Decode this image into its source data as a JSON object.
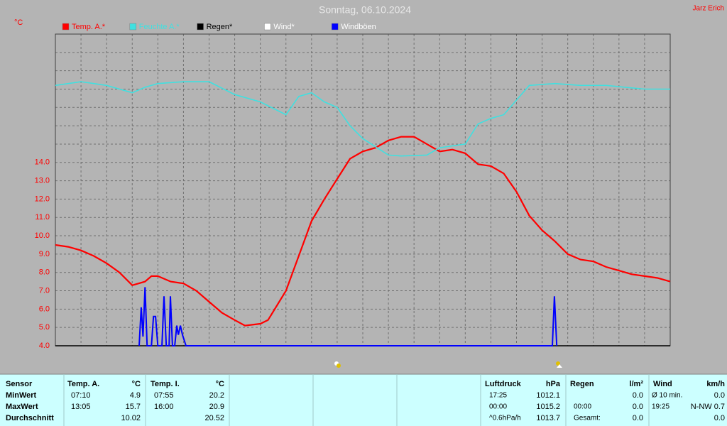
{
  "chart_data": {
    "type": "line",
    "title": "Sonntag, 06.10.2024",
    "y_unit": "°C",
    "author": "Jarz Erich",
    "xlim": [
      0,
      24
    ],
    "xticks": [
      0,
      1,
      2,
      3,
      4,
      5,
      6,
      7,
      8,
      9,
      10,
      11,
      12,
      13,
      14,
      15,
      16,
      17,
      18,
      19,
      20,
      21,
      22,
      23,
      24
    ],
    "ylim": [
      4,
      21
    ],
    "yticks": [
      {
        "value": 4,
        "label": "4.0"
      },
      {
        "value": 5,
        "label": "5.0"
      },
      {
        "value": 6,
        "label": "6.0"
      },
      {
        "value": 7,
        "label": "7.0"
      },
      {
        "value": 8,
        "label": "8.0"
      },
      {
        "value": 9,
        "label": "9.0"
      },
      {
        "value": 10,
        "label": "10.0"
      },
      {
        "value": 11,
        "label": "11.0"
      },
      {
        "value": 12,
        "label": "12.0"
      },
      {
        "value": 13,
        "label": "13.0"
      },
      {
        "value": 14,
        "label": "14.0"
      }
    ],
    "grid_y": [
      15,
      16,
      17,
      18,
      19,
      20,
      21
    ],
    "grid": true,
    "series": [
      {
        "name": "Temp. A.*",
        "color": "#ff0000",
        "x": [
          0,
          0.5,
          1,
          1.5,
          2,
          2.5,
          3,
          3.5,
          3.75,
          4,
          4.5,
          5,
          5.5,
          6,
          6.5,
          7,
          7.4,
          8,
          8.3,
          9,
          9.5,
          10,
          10.5,
          11,
          11.5,
          12,
          12.5,
          13,
          13.5,
          14,
          14.5,
          15,
          15.5,
          16,
          16.5,
          17,
          17.5,
          18,
          18.5,
          19,
          19.5,
          20,
          20.5,
          21,
          21.5,
          22,
          22.5,
          23,
          23.5,
          24
        ],
        "values": [
          9.5,
          9.4,
          9.2,
          8.9,
          8.5,
          8.0,
          7.3,
          7.5,
          7.8,
          7.8,
          7.5,
          7.4,
          7.0,
          6.4,
          5.8,
          5.4,
          5.1,
          5.2,
          5.4,
          7.0,
          8.9,
          10.8,
          12.0,
          13.1,
          14.2,
          14.6,
          14.8,
          15.2,
          15.4,
          15.4,
          15.0,
          14.6,
          14.7,
          14.5,
          13.9,
          13.8,
          13.4,
          12.4,
          11.1,
          10.3,
          9.7,
          9.0,
          8.7,
          8.6,
          8.3,
          8.1,
          7.9,
          7.8,
          7.7,
          7.5
        ]
      },
      {
        "name": "Feuchte A.*",
        "color": "#40e0e0",
        "x": [
          0,
          1,
          2,
          3,
          3.5,
          4,
          5,
          6,
          7,
          8,
          9,
          9.5,
          10,
          10.5,
          11,
          11.5,
          12,
          13,
          13.5,
          14.5,
          15,
          16,
          16.5,
          17,
          17.5,
          18,
          18.5,
          19.5,
          20.5,
          21.5,
          23,
          24
        ],
        "values": [
          18.2,
          18.4,
          18.2,
          17.8,
          18.1,
          18.3,
          18.4,
          18.4,
          17.7,
          17.3,
          16.6,
          17.6,
          17.8,
          17.3,
          17.0,
          16.0,
          15.3,
          14.4,
          14.35,
          14.4,
          14.8,
          15.0,
          16.1,
          16.4,
          16.6,
          17.4,
          18.2,
          18.3,
          18.2,
          18.2,
          18.0,
          18.0
        ]
      },
      {
        "name": "Regen*",
        "color": "#000000",
        "x": [],
        "values": []
      },
      {
        "name": "Wind*",
        "color": "#ffffff",
        "x": [],
        "values": []
      },
      {
        "name": "Windböen",
        "color": "#0000ff",
        "x": [
          3.27,
          3.35,
          3.42,
          3.5,
          3.58,
          3.75,
          3.83,
          3.91,
          4.0,
          4.16,
          4.24,
          4.33,
          4.44,
          4.49,
          4.57,
          4.66,
          4.74,
          4.8,
          4.88,
          4.96,
          5.1,
          19.4,
          19.48,
          19.57
        ],
        "values": [
          4,
          6.1,
          4.5,
          7.2,
          4,
          4,
          5.6,
          5.6,
          4,
          4,
          6.7,
          4,
          4,
          6.7,
          4,
          4,
          5.1,
          4.6,
          5.1,
          4.6,
          4,
          4,
          6.7,
          4
        ]
      }
    ]
  },
  "table": {
    "header": {
      "sensor": "Sensor",
      "temp_a": "Temp. A.",
      "temp_a_unit": "°C",
      "temp_i": "Temp. I.",
      "temp_i_unit": "°C",
      "pressure": "Luftdruck",
      "pressure_unit": "hPa",
      "rain": "Regen",
      "rain_unit": "l/m²",
      "wind": "Wind",
      "wind_unit": "km/h"
    },
    "rows": [
      {
        "label": "MinWert",
        "temp_a_time": "07:10",
        "temp_a": "4.9",
        "temp_i_time": "07:55",
        "temp_i": "20.2",
        "pressure_time": "17:25",
        "pressure": "1012.1",
        "rain": "0.0",
        "wind_time": "Ø 10 min.",
        "wind": "0.0"
      },
      {
        "label": "MaxWert",
        "temp_a_time": "13:05",
        "temp_a": "15.7",
        "temp_i_time": "16:00",
        "temp_i": "20.9",
        "pressure_time": "00:00",
        "pressure": "1015.2",
        "rain_time": "00:00",
        "rain": "0.0",
        "wind_time": "19:25",
        "wind": "N-NW 0.7"
      },
      {
        "label": "Durchschnitt",
        "temp_a": "10.02",
        "temp_i": "20.52",
        "pressure_time": "^0.6hPa/h",
        "pressure": "1013.7",
        "rain_time": "Gesamt:",
        "rain": "0.0",
        "wind": "0.0"
      }
    ]
  }
}
